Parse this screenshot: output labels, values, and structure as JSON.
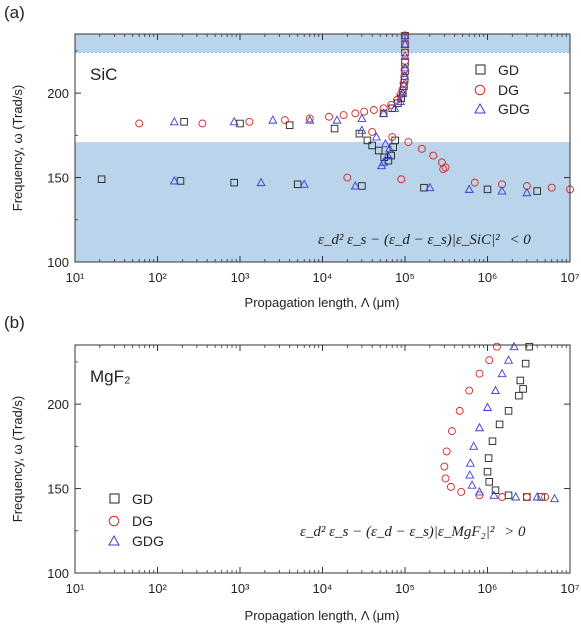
{
  "chart_data": [
    {
      "panel_label": "(a)",
      "type": "scatter",
      "annotation_material": "SiC",
      "xlabel": "Propagation length, Λ (μm)",
      "ylabel": "Frequency, ω (Trad/s)",
      "xscale": "log",
      "xlim": [
        10,
        10000000
      ],
      "ylim": [
        100,
        235
      ],
      "x_ticks": [
        "10¹",
        "10²",
        "10³",
        "10⁴",
        "10⁵",
        "10⁶",
        "10⁷"
      ],
      "y_ticks": [
        "100",
        "150",
        "200"
      ],
      "shaded_bands": [
        {
          "y_from": 100,
          "y_to": 171,
          "color": "#b9d4eb"
        },
        {
          "y_from": 224,
          "y_to": 235,
          "color": "#b9d4eb"
        }
      ],
      "legend": {
        "position": "top-right",
        "entries": [
          "GD",
          "DG",
          "GDG"
        ]
      },
      "equation": {
        "lhs": "ε_d² ε_s − (ε_d − ε_s)|ε_SiC|²",
        "relation": "< 0"
      },
      "series": [
        {
          "name": "GD",
          "marker": "square",
          "color": "#222222",
          "points": [
            [
              21,
              149
            ],
            [
              190,
              148
            ],
            [
              850,
              147
            ],
            [
              5000,
              146
            ],
            [
              30000,
              145
            ],
            [
              170000,
              144
            ],
            [
              1000000,
              143
            ],
            [
              4000000,
              142
            ],
            [
              210,
              183
            ],
            [
              1000,
              182
            ],
            [
              4000,
              181
            ],
            [
              14000,
              179
            ],
            [
              28000,
              176
            ],
            [
              35000,
              172
            ],
            [
              40000,
              169
            ],
            [
              48000,
              166
            ],
            [
              56000,
              162
            ],
            [
              63000,
              160
            ],
            [
              68000,
              163
            ],
            [
              72000,
              168
            ],
            [
              76000,
              172
            ],
            [
              55000,
              188
            ],
            [
              70000,
              191
            ],
            [
              82000,
              194
            ],
            [
              90000,
              197
            ],
            [
              94000,
              200
            ],
            [
              97000,
              204
            ],
            [
              99000,
              208
            ],
            [
              100000,
              213
            ],
            [
              100000,
              218
            ],
            [
              100000,
              224
            ],
            [
              100000,
              229
            ],
            [
              100000,
              234
            ]
          ]
        },
        {
          "name": "DG",
          "marker": "circle",
          "color": "#d62728",
          "points": [
            [
              60,
              182
            ],
            [
              350,
              182
            ],
            [
              1300,
              183
            ],
            [
              3500,
              184
            ],
            [
              7000,
              185
            ],
            [
              12000,
              186
            ],
            [
              18000,
              187
            ],
            [
              25000,
              188
            ],
            [
              32000,
              189
            ],
            [
              42000,
              190
            ],
            [
              55000,
              191
            ],
            [
              68000,
              193
            ],
            [
              80000,
              196
            ],
            [
              88000,
              199
            ],
            [
              93000,
              202
            ],
            [
              96000,
              206
            ],
            [
              98000,
              210
            ],
            [
              99000,
              214
            ],
            [
              100000,
              219
            ],
            [
              100000,
              224
            ],
            [
              100000,
              229
            ],
            [
              100000,
              234
            ],
            [
              40000,
              177
            ],
            [
              70000,
              174
            ],
            [
              110000,
              171
            ],
            [
              160000,
              167
            ],
            [
              220000,
              163
            ],
            [
              280000,
              159
            ],
            [
              310000,
              156
            ],
            [
              290000,
              155
            ],
            [
              20000,
              150
            ],
            [
              90000,
              149
            ],
            [
              700000,
              147
            ],
            [
              1500000,
              146
            ],
            [
              3000000,
              145
            ],
            [
              6000000,
              144
            ],
            [
              10000000,
              143
            ]
          ]
        },
        {
          "name": "GDG",
          "marker": "triangle",
          "color": "#3b3bd1",
          "points": [
            [
              160,
              183
            ],
            [
              850,
              183
            ],
            [
              2500,
              184
            ],
            [
              7000,
              184
            ],
            [
              15000,
              184
            ],
            [
              30000,
              185
            ],
            [
              55000,
              188
            ],
            [
              75000,
              191
            ],
            [
              88000,
              195
            ],
            [
              94000,
              200
            ],
            [
              97000,
              205
            ],
            [
              99000,
              210
            ],
            [
              100000,
              215
            ],
            [
              100000,
              222
            ],
            [
              100000,
              229
            ],
            [
              100000,
              234
            ],
            [
              30000,
              178
            ],
            [
              45000,
              174
            ],
            [
              58000,
              170
            ],
            [
              65000,
              167
            ],
            [
              62000,
              163
            ],
            [
              55000,
              159
            ],
            [
              52000,
              157
            ],
            [
              160,
              148
            ],
            [
              1800,
              147
            ],
            [
              6000,
              146
            ],
            [
              25000,
              145
            ],
            [
              200000,
              144
            ],
            [
              600000,
              143
            ],
            [
              1500000,
              142
            ],
            [
              3000000,
              141
            ]
          ]
        }
      ]
    },
    {
      "panel_label": "(b)",
      "type": "scatter",
      "annotation_material": "MgF₂",
      "xlabel": "Propagation length, Λ (μm)",
      "ylabel": "Frequency, ω (Trad/s)",
      "xscale": "log",
      "xlim": [
        10,
        10000000
      ],
      "ylim": [
        100,
        235
      ],
      "x_ticks": [
        "10¹",
        "10²",
        "10³",
        "10⁴",
        "10⁵",
        "10⁶",
        "10⁷"
      ],
      "y_ticks": [
        "100",
        "150",
        "200"
      ],
      "legend": {
        "position": "bottom-left",
        "entries": [
          "GD",
          "DG",
          "GDG"
        ]
      },
      "equation": {
        "lhs": "ε_d² ε_s − (ε_d − ε_s)|ε_MgF₂|²",
        "relation": "> 0"
      },
      "series": [
        {
          "name": "GD",
          "marker": "square",
          "color": "#222222",
          "points": [
            [
              3200000,
              234
            ],
            [
              2900000,
              224
            ],
            [
              2500000,
              214
            ],
            [
              2700000,
              209
            ],
            [
              2400000,
              205
            ],
            [
              1800000,
              196
            ],
            [
              1400000,
              188
            ],
            [
              1150000,
              178
            ],
            [
              1030000,
              168
            ],
            [
              1000000,
              160
            ],
            [
              1050000,
              154
            ],
            [
              1250000,
              149
            ],
            [
              1800000,
              146
            ],
            [
              3000000,
              145
            ],
            [
              4500000,
              145
            ]
          ]
        },
        {
          "name": "DG",
          "marker": "circle",
          "color": "#d62728",
          "points": [
            [
              1300000,
              234
            ],
            [
              1050000,
              226
            ],
            [
              800000,
              218
            ],
            [
              600000,
              208
            ],
            [
              460000,
              196
            ],
            [
              370000,
              184
            ],
            [
              320000,
              172
            ],
            [
              300000,
              163
            ],
            [
              310000,
              156
            ],
            [
              360000,
              151
            ],
            [
              480000,
              148
            ],
            [
              800000,
              146
            ],
            [
              1500000,
              145
            ],
            [
              3000000,
              145
            ],
            [
              5000000,
              145
            ]
          ]
        },
        {
          "name": "GDG",
          "marker": "triangle",
          "color": "#3b3bd1",
          "points": [
            [
              2100000,
              234
            ],
            [
              1800000,
              226
            ],
            [
              1500000,
              218
            ],
            [
              1250000,
              208
            ],
            [
              1000000,
              198
            ],
            [
              800000,
              186
            ],
            [
              680000,
              175
            ],
            [
              620000,
              165
            ],
            [
              610000,
              158
            ],
            [
              650000,
              152
            ],
            [
              800000,
              148
            ],
            [
              1200000,
              146
            ],
            [
              2200000,
              145
            ],
            [
              4000000,
              145
            ],
            [
              6500000,
              144
            ]
          ]
        }
      ]
    }
  ]
}
